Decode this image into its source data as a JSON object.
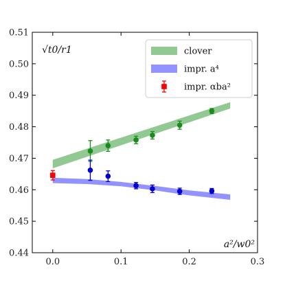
{
  "chart_data": {
    "type": "scatter",
    "title": "",
    "ylabel": "√t0/r1",
    "xlabel": "a²/w0²",
    "xlim": [
      -0.03,
      0.3
    ],
    "ylim": [
      0.44,
      0.51
    ],
    "x_ticks": [
      "0.0",
      "0.1",
      "0.2",
      "0.3"
    ],
    "x_tick_values": [
      0.0,
      0.1,
      0.2,
      0.3
    ],
    "y_ticks": [
      "0.44",
      "0.45",
      "0.46",
      "0.47",
      "0.48",
      "0.49",
      "0.50",
      "0.51"
    ],
    "y_tick_values": [
      0.44,
      0.45,
      0.46,
      0.47,
      0.48,
      0.49,
      0.5,
      0.51
    ],
    "grid": false,
    "legend_position": "top-right",
    "series": [
      {
        "name": "clover",
        "kind": "band",
        "color": "#7fbf7f",
        "x": [
          0.0,
          0.26
        ],
        "y_low": [
          0.4668,
          0.4858
        ],
        "y_high": [
          0.4695,
          0.4878
        ]
      },
      {
        "name": "impr. a^4",
        "kind": "band",
        "color": "#8080ff",
        "x": [
          0.0,
          0.05,
          0.1,
          0.15,
          0.2,
          0.26
        ],
        "y_low": [
          0.4621,
          0.4618,
          0.4611,
          0.4598,
          0.4582,
          0.4568
        ],
        "y_high": [
          0.4638,
          0.4634,
          0.4625,
          0.4612,
          0.4598,
          0.4585
        ]
      },
      {
        "name": "impr. αb a²",
        "kind": "points",
        "color": "#ff0000",
        "x": [
          0.0
        ],
        "y": [
          0.4646
        ],
        "yerr": [
          0.0015
        ]
      },
      {
        "name": "",
        "kind": "points",
        "color": "#1a8a1a",
        "x": [
          0.055,
          0.081,
          0.122,
          0.146,
          0.186,
          0.233
        ],
        "y": [
          0.4723,
          0.474,
          0.4758,
          0.4773,
          0.4805,
          0.485
        ],
        "yerr": [
          0.0033,
          0.0018,
          0.0012,
          0.0012,
          0.0013,
          0.0008
        ]
      },
      {
        "name": "",
        "kind": "points",
        "color": "#0000cc",
        "x": [
          0.055,
          0.081,
          0.122,
          0.146,
          0.186,
          0.233
        ],
        "y": [
          0.4662,
          0.4643,
          0.4613,
          0.4603,
          0.4595,
          0.4596
        ],
        "yerr": [
          0.0032,
          0.0017,
          0.001,
          0.0012,
          0.001,
          0.0008
        ]
      }
    ],
    "legend": [
      {
        "label": "clover",
        "kind": "band",
        "color": "#7fbf7f"
      },
      {
        "label": "impr. a⁴",
        "kind": "band",
        "color": "#8080ff"
      },
      {
        "label": "impr. αba²",
        "kind": "points",
        "color": "#ff0000"
      }
    ]
  }
}
